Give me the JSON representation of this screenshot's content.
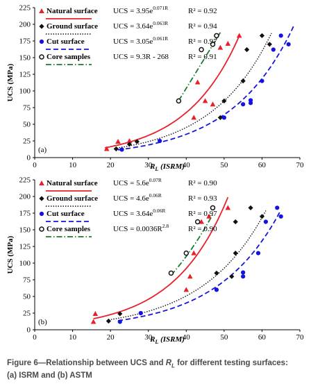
{
  "chart_data": [
    {
      "type": "scatter",
      "panel_label": "(a)",
      "xlabel_main": "R",
      "xlabel_sub": "L",
      "xlabel_suffix": " (ISRM)",
      "ylabel": "UCS (MPa)",
      "xlim": [
        0,
        70
      ],
      "ylim": [
        0,
        225
      ],
      "xticks": [
        0,
        10,
        20,
        30,
        40,
        50,
        60,
        70
      ],
      "yticks": [
        0,
        25,
        50,
        75,
        100,
        125,
        150,
        175,
        200,
        225
      ],
      "legend_position": "top-left",
      "series": [
        {
          "name": "Natural surface",
          "color": "#e8202a",
          "marker": "triangle",
          "equation": "UCS = 3.95e",
          "exponent": "0.071R",
          "r2": "R² = 0.92",
          "fit": {
            "form": "exp",
            "a": 3.95,
            "b": 0.071,
            "range": [
              18.5,
              54
            ]
          },
          "points": [
            [
              19,
              13
            ],
            [
              22,
              24
            ],
            [
              42,
              60
            ],
            [
              43,
              113
            ],
            [
              45,
              85
            ],
            [
              47,
              80
            ],
            [
              49,
              165
            ],
            [
              51,
              171
            ],
            [
              54,
              183
            ],
            [
              25,
              25
            ]
          ]
        },
        {
          "name": "Ground surface",
          "color": "#111111",
          "marker": "diamond",
          "equation": "UCS = 3.64e",
          "exponent": "0.063R",
          "r2": "R² = 0.94",
          "fit": {
            "form": "exp",
            "a": 3.64,
            "b": 0.063,
            "range": [
              21,
              62.5
            ]
          },
          "points": [
            [
              21.5,
              13
            ],
            [
              27,
              24
            ],
            [
              49,
              60
            ],
            [
              50,
              85
            ],
            [
              55,
              115
            ],
            [
              56,
              162
            ],
            [
              60,
              183
            ],
            [
              62,
              170
            ],
            [
              25,
              20
            ]
          ]
        },
        {
          "name": "Cut surface",
          "color": "#1414e0",
          "marker": "circle",
          "equation": "UCS = 3.05e",
          "exponent": "0.061R",
          "r2": "R² = 0.97",
          "fit": {
            "form": "exp",
            "a": 3.05,
            "b": 0.061,
            "range": [
              22,
              68.5
            ]
          },
          "points": [
            [
              23,
              12
            ],
            [
              33,
              25
            ],
            [
              50,
              60
            ],
            [
              55,
              80
            ],
            [
              57,
              82
            ],
            [
              57,
              86
            ],
            [
              60,
              115
            ],
            [
              63,
              162
            ],
            [
              65,
              183
            ],
            [
              67,
              170
            ]
          ]
        },
        {
          "name": "Core samples",
          "color": "#1a7a2e",
          "marker": "open-circle",
          "marker_color": "#111111",
          "equation": "UCS = 9.3R - 268",
          "exponent": "",
          "r2": "R² = 0.91",
          "fit": {
            "form": "linear",
            "a": 9.3,
            "b": -268,
            "range": [
              38,
              49
            ]
          },
          "points": [
            [
              38,
              85
            ],
            [
              44,
              162
            ],
            [
              47,
              170
            ],
            [
              48,
              183
            ]
          ]
        }
      ]
    },
    {
      "type": "scatter",
      "panel_label": "(b)",
      "xlabel_main": "R",
      "xlabel_sub": "L",
      "xlabel_suffix": " (ISRM)",
      "ylabel": "UCS (MPa)",
      "xlim": [
        0,
        70
      ],
      "ylim": [
        0,
        225
      ],
      "xticks": [
        0,
        10,
        20,
        30,
        40,
        50,
        60,
        70
      ],
      "yticks": [
        0,
        25,
        50,
        75,
        100,
        125,
        150,
        175,
        200,
        225
      ],
      "legend_position": "top-left",
      "series": [
        {
          "name": "Natural surface",
          "color": "#e8202a",
          "marker": "triangle",
          "equation": "UCS = 5.6e",
          "exponent": "0.07R",
          "r2": "R² = 0.90",
          "fit": {
            "form": "exp",
            "a": 5.6,
            "b": 0.07,
            "range": [
              15.5,
              51
            ]
          },
          "points": [
            [
              15.5,
              12
            ],
            [
              16,
              24
            ],
            [
              40,
              60
            ],
            [
              41,
              80
            ],
            [
              42,
              115
            ],
            [
              44,
              162
            ],
            [
              46,
              170
            ],
            [
              51,
              183
            ]
          ]
        },
        {
          "name": "Ground surface",
          "color": "#111111",
          "marker": "diamond",
          "equation": "UCS = 4.6e",
          "exponent": "0.06R",
          "r2": "R² = 0.93",
          "fit": {
            "form": "exp",
            "a": 4.6,
            "b": 0.06,
            "range": [
              19.5,
              61
            ]
          },
          "points": [
            [
              19.5,
              13
            ],
            [
              22.5,
              24
            ],
            [
              48,
              85
            ],
            [
              52,
              80
            ],
            [
              53,
              115
            ],
            [
              53,
              162
            ],
            [
              57,
              183
            ],
            [
              60,
              170
            ]
          ]
        },
        {
          "name": "Cut surface",
          "color": "#1414e0",
          "marker": "circle",
          "equation": "UCS = 3.64e",
          "exponent": "0.06R",
          "r2": "R² = 0.97",
          "fit": {
            "form": "exp",
            "a": 3.64,
            "b": 0.06,
            "range": [
              22,
              65
            ]
          },
          "points": [
            [
              22.5,
              12
            ],
            [
              28,
              25
            ],
            [
              48,
              60
            ],
            [
              55,
              80
            ],
            [
              55,
              86
            ],
            [
              59,
              115
            ],
            [
              61,
              162
            ],
            [
              64,
              183
            ],
            [
              65,
              170
            ]
          ]
        },
        {
          "name": "Core samples",
          "color": "#1a7a2e",
          "marker": "open-circle",
          "marker_color": "#111111",
          "equation": "UCS = 0.0036R",
          "exponent": "2.8",
          "r2": "R² = 0.90",
          "fit": {
            "form": "power",
            "a": 0.0036,
            "b": 2.8,
            "range": [
              36,
              47
            ]
          },
          "points": [
            [
              36,
              85
            ],
            [
              40,
              115
            ],
            [
              43,
              162
            ],
            [
              47,
              183
            ]
          ]
        }
      ]
    }
  ],
  "caption": {
    "line1_prefix": "Figure 6—Relationship between UCS and ",
    "line1_main": "R",
    "line1_sub": "L",
    "line1_suffix": " for different testing surfaces:",
    "line2": "(a) ISRM and (b) ASTM"
  }
}
